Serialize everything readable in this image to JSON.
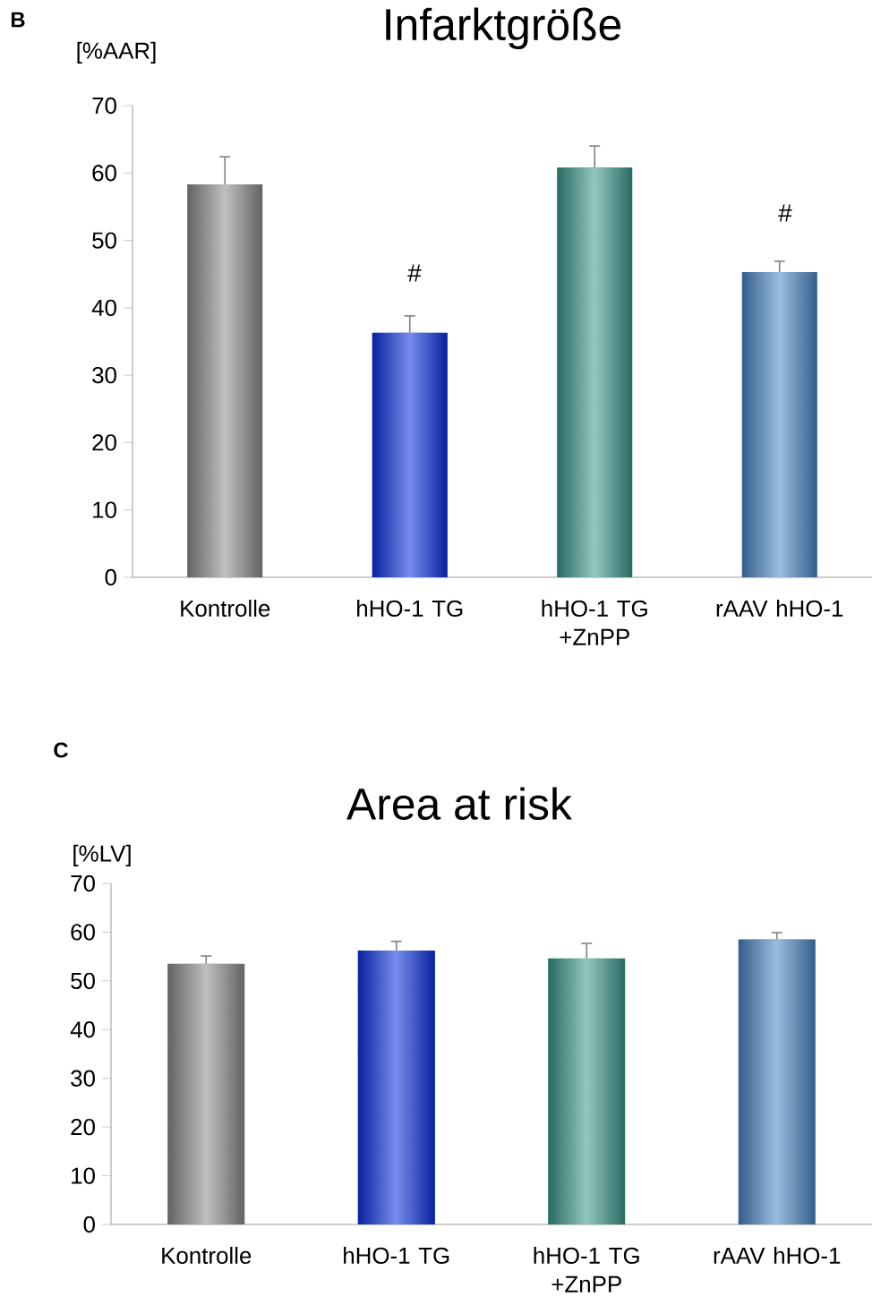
{
  "chart_data": [
    {
      "type": "bar",
      "title": "Infarktgröße",
      "ylabel": "[%AAR]",
      "categories": [
        "Kontrolle",
        "hHO-1 TG",
        "hHO-1 TG +ZnPP",
        "rAAV hHO-1"
      ],
      "values": [
        58.3,
        36.3,
        60.8,
        45.3
      ],
      "errors": [
        4.1,
        2.5,
        3.2,
        1.6
      ],
      "colors": [
        "#8c8c8c",
        "#0a2fe0",
        "#3a988c",
        "#4a86c6"
      ],
      "ylim": [
        0,
        70
      ],
      "yticks": [
        0,
        10,
        20,
        30,
        40,
        50,
        60,
        70
      ],
      "annotations": [
        "B",
        "#",
        "#"
      ]
    },
    {
      "type": "bar",
      "title": "Area at risk",
      "ylabel": "[%LV]",
      "categories": [
        "Kontrolle",
        "hHO-1 TG",
        "hHO-1 TG +ZnPP",
        "rAAV hHO-1"
      ],
      "values": [
        53.5,
        56.2,
        54.6,
        58.5
      ],
      "errors": [
        1.6,
        1.9,
        3.1,
        1.4
      ],
      "colors": [
        "#8c8c8c",
        "#0a2fe0",
        "#3a988c",
        "#4a86c6"
      ],
      "ylim": [
        0,
        70
      ],
      "yticks": [
        0,
        10,
        20,
        30,
        40,
        50,
        60,
        70
      ],
      "annotations": [
        "C"
      ]
    }
  ]
}
